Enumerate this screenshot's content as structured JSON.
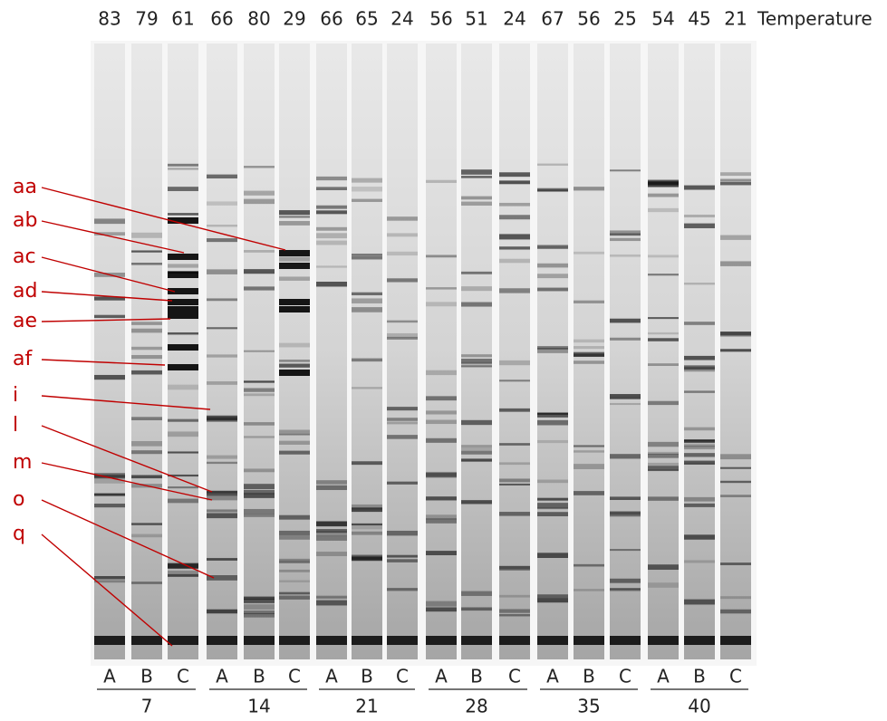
{
  "temperature_row": {
    "values": [
      83,
      79,
      61,
      66,
      80,
      29,
      66,
      65,
      24,
      56,
      51,
      24,
      67,
      56,
      25,
      54,
      45,
      21
    ],
    "label": "Temperature"
  },
  "band_labels": [
    "aa",
    "ab",
    "ac",
    "ad",
    "ae",
    "af",
    "i",
    "l",
    "m",
    "o",
    "q"
  ],
  "lane_groups": [
    {
      "lanes": [
        "A",
        "B",
        "C"
      ],
      "day": 7
    },
    {
      "lanes": [
        "A",
        "B",
        "C"
      ],
      "day": 14
    },
    {
      "lanes": [
        "A",
        "B",
        "C"
      ],
      "day": 21
    },
    {
      "lanes": [
        "A",
        "B",
        "C"
      ],
      "day": 28
    },
    {
      "lanes": [
        "A",
        "B",
        "C"
      ],
      "day": 35
    },
    {
      "lanes": [
        "A",
        "B",
        "C"
      ],
      "day": 40
    }
  ]
}
